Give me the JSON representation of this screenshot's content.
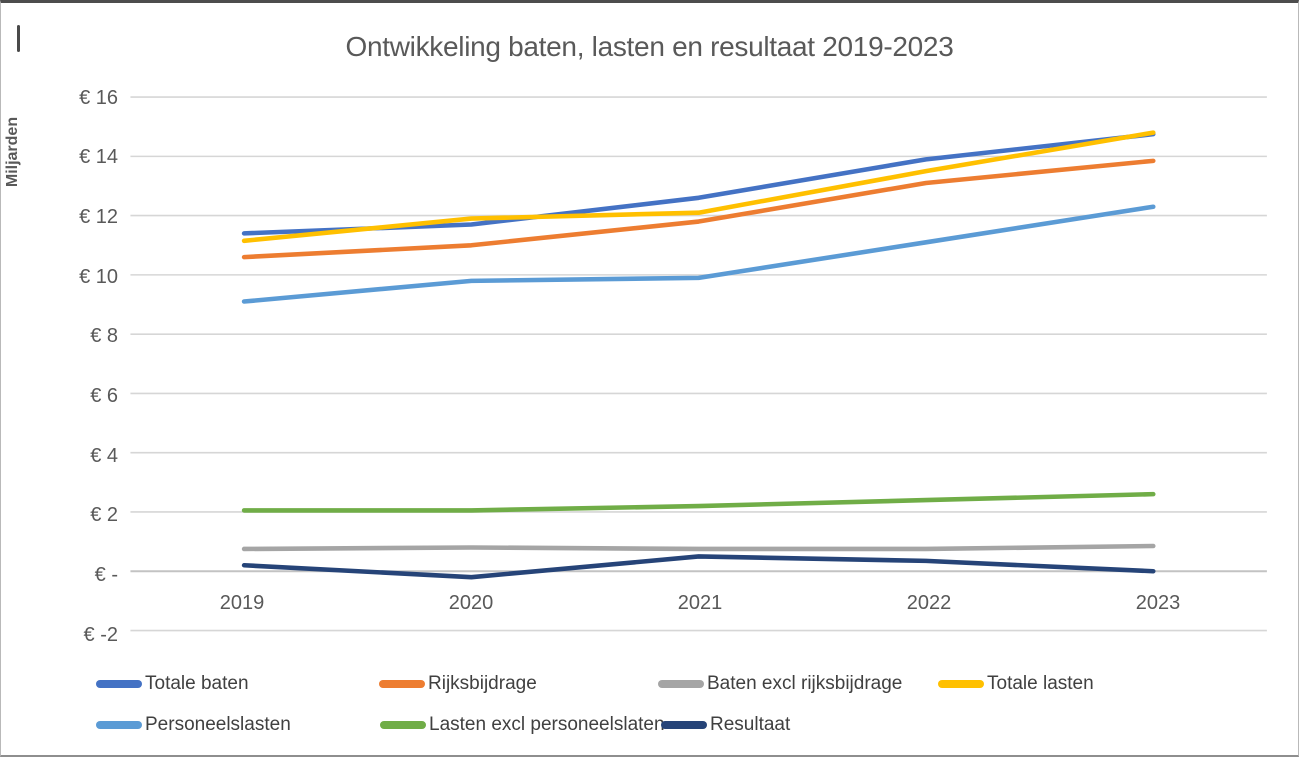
{
  "chart": {
    "title": "Ontwikkeling baten, lasten en resultaat 2019-2023",
    "y_axis_title": "Miljarden",
    "y_tick_labels": [
      "€ 16",
      "€ 14",
      "€ 12",
      "€ 10",
      "€ 8",
      "€ 6",
      "€ 4",
      "€ 2",
      "€ -",
      "€ -2"
    ]
  },
  "chart_data": {
    "type": "line",
    "title": "Ontwikkeling baten, lasten en resultaat 2019-2023",
    "ylabel": "Miljarden",
    "categories": [
      "2019",
      "2020",
      "2021",
      "2022",
      "2023"
    ],
    "series": [
      {
        "name": "Totale baten",
        "color": "#4472C4",
        "values": [
          11.4,
          11.7,
          12.6,
          13.9,
          14.75
        ]
      },
      {
        "name": "Rijksbijdrage",
        "color": "#ED7D31",
        "values": [
          10.6,
          11.0,
          11.8,
          13.1,
          13.85
        ]
      },
      {
        "name": "Baten excl rijksbijdrage",
        "color": "#A5A5A5",
        "values": [
          0.75,
          0.8,
          0.75,
          0.75,
          0.85
        ]
      },
      {
        "name": "Totale lasten",
        "color": "#FFC000",
        "values": [
          11.15,
          11.9,
          12.1,
          13.5,
          14.8
        ]
      },
      {
        "name": "Personeelslasten",
        "color": "#5B9BD5",
        "values": [
          9.1,
          9.8,
          9.9,
          11.1,
          12.3
        ]
      },
      {
        "name": "Lasten excl personeelslaten",
        "color": "#70AD47",
        "values": [
          2.05,
          2.05,
          2.2,
          2.4,
          2.6
        ]
      },
      {
        "name": "Resultaat",
        "color": "#264478",
        "values": [
          0.2,
          -0.2,
          0.5,
          0.35,
          0.0
        ]
      }
    ],
    "ylim": [
      -2,
      16
    ],
    "ytick_step": 2,
    "grid": true,
    "legend_position": "bottom",
    "legend_rows": [
      [
        0,
        1,
        2,
        3
      ],
      [
        4,
        5,
        6
      ]
    ]
  }
}
